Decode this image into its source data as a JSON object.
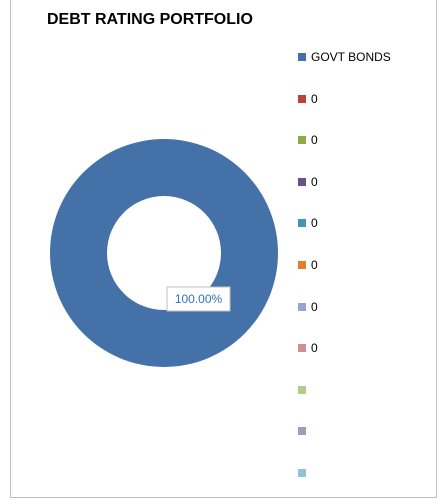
{
  "chart_data": {
    "type": "pie",
    "title": "DEBT RATING PORTFOLIO",
    "donut": true,
    "slices": [
      {
        "label": "GOVT BONDS",
        "value": 100.0,
        "data_label": "100.00%",
        "color": "#4472a8"
      }
    ],
    "legend_position": "right",
    "legend": [
      {
        "label": "GOVT BONDS",
        "color": "#4472a8"
      },
      {
        "label": "0",
        "color": "#b5433f"
      },
      {
        "label": "0",
        "color": "#8faa46"
      },
      {
        "label": "0",
        "color": "#6c5089"
      },
      {
        "label": "0",
        "color": "#3e98ae"
      },
      {
        "label": "0",
        "color": "#e07f2f"
      },
      {
        "label": "0",
        "color": "#93a8cb"
      },
      {
        "label": "0",
        "color": "#d08f8e"
      },
      {
        "label": "",
        "color": "#b5cc89"
      },
      {
        "label": "",
        "color": "#a499bd"
      },
      {
        "label": "",
        "color": "#8cc5d6"
      }
    ]
  }
}
